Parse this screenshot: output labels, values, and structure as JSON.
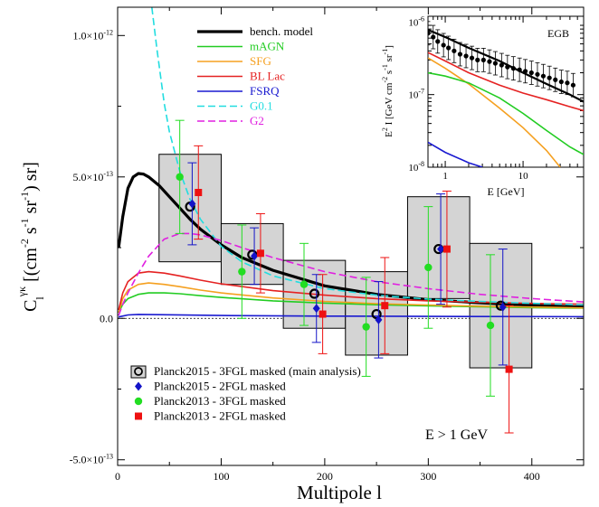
{
  "colors": {
    "bench": "#000000",
    "mAGN": "#22cc22",
    "SFG": "#f5a020",
    "BLLac": "#e52222",
    "FSRQ": "#1a1ad0",
    "G01": "#22dde0",
    "G2": "#e020e0",
    "box_fill": "#d4d4d4",
    "p15_2FGL": "#1414c8",
    "p13_3FGL": "#22dd22",
    "p13_2FGL": "#ee1111"
  },
  "chart_data": [
    {
      "type": "scatter",
      "ylabel": "C_l^{γκ}  [(cm^{-2} s^{-1} sr^{-1}) sr]",
      "xlabel": "Multipole l",
      "annotation": "E > 1 GeV",
      "xlim": [
        0,
        450
      ],
      "ylim": [
        -5.2e-13,
        1.1e-12
      ],
      "xticks": [
        0,
        100,
        200,
        300,
        400
      ],
      "xtick_labels": [
        "0",
        "100",
        "200",
        "300",
        "400"
      ],
      "yticks": [
        -5e-13,
        0,
        5e-13,
        1e-12
      ],
      "ytick_labels": [
        "-5.0×10^{-13}",
        "0.0",
        "5.0×10^{-13}",
        "1.0×10^{-12}"
      ],
      "model_legend": [
        "bench. model",
        "mAGN",
        "SFG",
        "BL Lac",
        "FSRQ",
        "G0.1",
        "G2"
      ],
      "models": [
        {
          "name": "bench. model",
          "key": "bench",
          "dash": false,
          "width": 3.2,
          "x": [
            1,
            5,
            10,
            15,
            20,
            25,
            30,
            40,
            50,
            60,
            70,
            80,
            100,
            120,
            150,
            200,
            250,
            300,
            350,
            400,
            450
          ],
          "y": [
            2.5e-13,
            3.6e-13,
            4.6e-13,
            5e-13,
            5.12e-13,
            5.1e-13,
            5e-13,
            4.7e-13,
            4.3e-13,
            3.9e-13,
            3.5e-13,
            3.15e-13,
            2.6e-13,
            2.15e-13,
            1.7e-13,
            1.15e-13,
            8.5e-14,
            6.6e-14,
            5.5e-14,
            4.6e-14,
            4e-14
          ]
        },
        {
          "name": "mAGN",
          "key": "mAGN",
          "dash": false,
          "width": 1.6,
          "x": [
            1,
            5,
            10,
            20,
            30,
            45,
            60,
            80,
            100,
            150,
            200,
            250,
            300,
            350,
            400,
            450
          ],
          "y": [
            2e-14,
            5e-14,
            7e-14,
            8.5e-14,
            9e-14,
            9e-14,
            8.7e-14,
            8e-14,
            7.4e-14,
            6.2e-14,
            5.4e-14,
            4.8e-14,
            4.4e-14,
            4.1e-14,
            3.8e-14,
            3.6e-14
          ]
        },
        {
          "name": "SFG",
          "key": "SFG",
          "dash": false,
          "width": 1.6,
          "x": [
            1,
            5,
            10,
            20,
            30,
            45,
            60,
            80,
            100,
            150,
            200,
            250,
            300,
            350,
            400,
            450
          ],
          "y": [
            2e-14,
            7e-14,
            1e-13,
            1.2e-13,
            1.25e-13,
            1.2e-13,
            1.12e-13,
            1e-13,
            9e-14,
            7.2e-14,
            6e-14,
            5.2e-14,
            4.7e-14,
            4.3e-14,
            4e-14,
            3.7e-14
          ]
        },
        {
          "name": "BL Lac",
          "key": "BLLac",
          "dash": false,
          "width": 1.6,
          "x": [
            1,
            5,
            10,
            20,
            30,
            45,
            60,
            80,
            100,
            150,
            200,
            250,
            300,
            350,
            400,
            450
          ],
          "y": [
            3e-14,
            9e-14,
            1.3e-13,
            1.6e-13,
            1.65e-13,
            1.6e-13,
            1.5e-13,
            1.35e-13,
            1.22e-13,
            9.8e-14,
            8.2e-14,
            7e-14,
            6.2e-14,
            5.7e-14,
            5.3e-14,
            5e-14
          ]
        },
        {
          "name": "FSRQ",
          "key": "FSRQ",
          "dash": false,
          "width": 1.6,
          "x": [
            1,
            10,
            20,
            40,
            100,
            200,
            300,
            450
          ],
          "y": [
            5e-15,
            1.2e-14,
            1.4e-14,
            1.3e-14,
            1e-14,
            8e-15,
            7e-15,
            6e-15
          ]
        },
        {
          "name": "G0.1",
          "key": "G01",
          "dash": true,
          "width": 1.6,
          "x": [
            33,
            38,
            45,
            50,
            60,
            70,
            80,
            100,
            120,
            150,
            200,
            250,
            300,
            350,
            400,
            450
          ],
          "y": [
            1.1e-12,
            9.5e-13,
            7.6e-13,
            6.6e-13,
            5.2e-13,
            4.2e-13,
            3.5e-13,
            2.55e-13,
            2e-13,
            1.5e-13,
            1.05e-13,
            8.2e-14,
            6.8e-14,
            6e-14,
            5.3e-14,
            4.8e-14
          ]
        },
        {
          "name": "G2",
          "key": "G2",
          "dash": true,
          "width": 1.6,
          "x": [
            1,
            5,
            10,
            20,
            30,
            45,
            60,
            70,
            80,
            100,
            120,
            150,
            200,
            250,
            300,
            350,
            400,
            450
          ],
          "y": [
            1e-14,
            5e-14,
            9e-14,
            1.6e-13,
            2.2e-13,
            2.8e-13,
            3e-13,
            3e-13,
            2.95e-13,
            2.75e-13,
            2.5e-13,
            2.15e-13,
            1.65e-13,
            1.3e-13,
            1.05e-13,
            8.5e-14,
            7e-14,
            5.8e-14
          ]
        }
      ],
      "bins": [
        {
          "x": [
            40,
            100
          ],
          "y": [
            2e-13,
            5.8e-13
          ]
        },
        {
          "x": [
            100,
            160
          ],
          "y": [
            1.2e-13,
            3.35e-13
          ]
        },
        {
          "x": [
            160,
            220
          ],
          "y": [
            -3.5e-14,
            2.05e-13
          ]
        },
        {
          "x": [
            220,
            280
          ],
          "y": [
            -1.3e-13,
            1.65e-13
          ]
        },
        {
          "x": [
            280,
            340
          ],
          "y": [
            7e-14,
            4.3e-13
          ]
        },
        {
          "x": [
            340,
            400
          ],
          "y": [
            -1.75e-13,
            2.65e-13
          ]
        }
      ],
      "series": [
        {
          "name": "Planck2015 - 3FGL masked (main analysis)",
          "marker": "open-circle",
          "color_key": "bench",
          "x": [
            70,
            130,
            190,
            250,
            310,
            370
          ],
          "y": [
            3.95e-13,
            2.25e-13,
            8.7e-14,
            1.5e-14,
            2.45e-13,
            4.5e-14
          ],
          "err": [
            0,
            0,
            0,
            0,
            0,
            0
          ]
        },
        {
          "name": "Planck2015 - 2FGL masked",
          "marker": "diamond",
          "color_key": "p15_2FGL",
          "x": [
            72,
            132,
            192,
            252,
            312,
            372
          ],
          "y": [
            4.05e-13,
            2.2e-13,
            3.5e-14,
            -5e-15,
            2.45e-13,
            4e-14
          ],
          "err": [
            1.45e-13,
            1e-13,
            1.2e-13,
            1.35e-13,
            1.95e-13,
            2.05e-13
          ]
        },
        {
          "name": "Planck2013 - 3FGL masked",
          "marker": "circle",
          "color_key": "p13_3FGL",
          "x": [
            60,
            120,
            180,
            240,
            300,
            360
          ],
          "y": [
            5e-13,
            1.65e-13,
            1.2e-13,
            -3e-14,
            1.8e-13,
            -2.5e-14
          ],
          "err": [
            2e-13,
            1.65e-13,
            1.45e-13,
            1.75e-13,
            2.15e-13,
            2.5e-13
          ]
        },
        {
          "name": "Planck2013 - 2FGL masked",
          "marker": "square",
          "color_key": "p13_2FGL",
          "x": [
            78,
            138,
            198,
            258,
            318,
            378
          ],
          "y": [
            4.45e-13,
            2.3e-13,
            1.5e-14,
            4.5e-14,
            2.45e-13,
            -1.8e-13
          ],
          "err": [
            1.65e-13,
            1.4e-13,
            1.4e-13,
            1.7e-13,
            2.05e-13,
            2.25e-13
          ]
        }
      ]
    },
    {
      "type": "line",
      "title": "EGB",
      "xlabel": "E [GeV]",
      "ylabel": "E^2 I [GeV cm^{-2} s^{-1} sr^{-1}]",
      "xscale": "log",
      "yscale": "log",
      "xlim": [
        0.6,
        60
      ],
      "ylim": [
        1e-08,
        1.2e-06
      ],
      "xticks": [
        1,
        10
      ],
      "xtick_labels": [
        "1",
        "10"
      ],
      "yticks": [
        1e-08,
        1e-07,
        1e-06
      ],
      "ytick_labels": [
        "10^{-8}",
        "10^{-7}",
        "10^{-6}"
      ],
      "models": [
        {
          "key": "bench",
          "width": 2.2,
          "x": [
            0.6,
            1,
            2,
            5,
            10,
            20,
            40,
            60
          ],
          "y": [
            7.8e-07,
            6.2e-07,
            4.4e-07,
            2.9e-07,
            2e-07,
            1.4e-07,
            1e-07,
            8e-08
          ]
        },
        {
          "key": "BLLac",
          "width": 1.6,
          "x": [
            0.6,
            1,
            2,
            5,
            10,
            20,
            40,
            60
          ],
          "y": [
            3.8e-07,
            2.9e-07,
            2e-07,
            1.35e-07,
            1.05e-07,
            8.5e-08,
            6.8e-08,
            6e-08
          ]
        },
        {
          "key": "SFG",
          "width": 1.6,
          "x": [
            0.6,
            1,
            2,
            5,
            10,
            20,
            30
          ],
          "y": [
            3.2e-07,
            2.3e-07,
            1.4e-07,
            6.5e-08,
            3.5e-08,
            1.7e-08,
            1e-08
          ]
        },
        {
          "key": "mAGN",
          "width": 1.6,
          "x": [
            0.6,
            1,
            2,
            5,
            10,
            20,
            40,
            60
          ],
          "y": [
            2e-07,
            1.8e-07,
            1.45e-07,
            9e-08,
            5.5e-08,
            3.2e-08,
            1.9e-08,
            1.5e-08
          ]
        },
        {
          "key": "FSRQ",
          "width": 1.6,
          "x": [
            0.6,
            1,
            2,
            3
          ],
          "y": [
            2.2e-08,
            1.6e-08,
            1.15e-08,
            1e-08
          ]
        }
      ],
      "series": [
        {
          "key": "bench",
          "marker": "circle",
          "x": [
            0.6,
            0.7,
            0.8,
            0.95,
            1.1,
            1.3,
            1.55,
            1.85,
            2.2,
            2.6,
            3.1,
            3.7,
            4.4,
            5.3,
            6.3,
            7.5,
            9,
            10.7,
            12.8,
            15.3,
            18.2,
            21.8,
            26,
            31,
            37,
            44
          ],
          "y": [
            7e-07,
            6.2e-07,
            5.4e-07,
            4.8e-07,
            4.4e-07,
            4e-07,
            3.6e-07,
            3.4e-07,
            3.2e-07,
            3e-07,
            3e-07,
            2.85e-07,
            2.7e-07,
            2.55e-07,
            2.4e-07,
            2.3e-07,
            2.2e-07,
            2.1e-07,
            2e-07,
            1.9e-07,
            1.8e-07,
            1.7e-07,
            1.6e-07,
            1.5e-07,
            1.45e-07,
            1.35e-07
          ],
          "rel_err": 0.45
        }
      ]
    }
  ]
}
